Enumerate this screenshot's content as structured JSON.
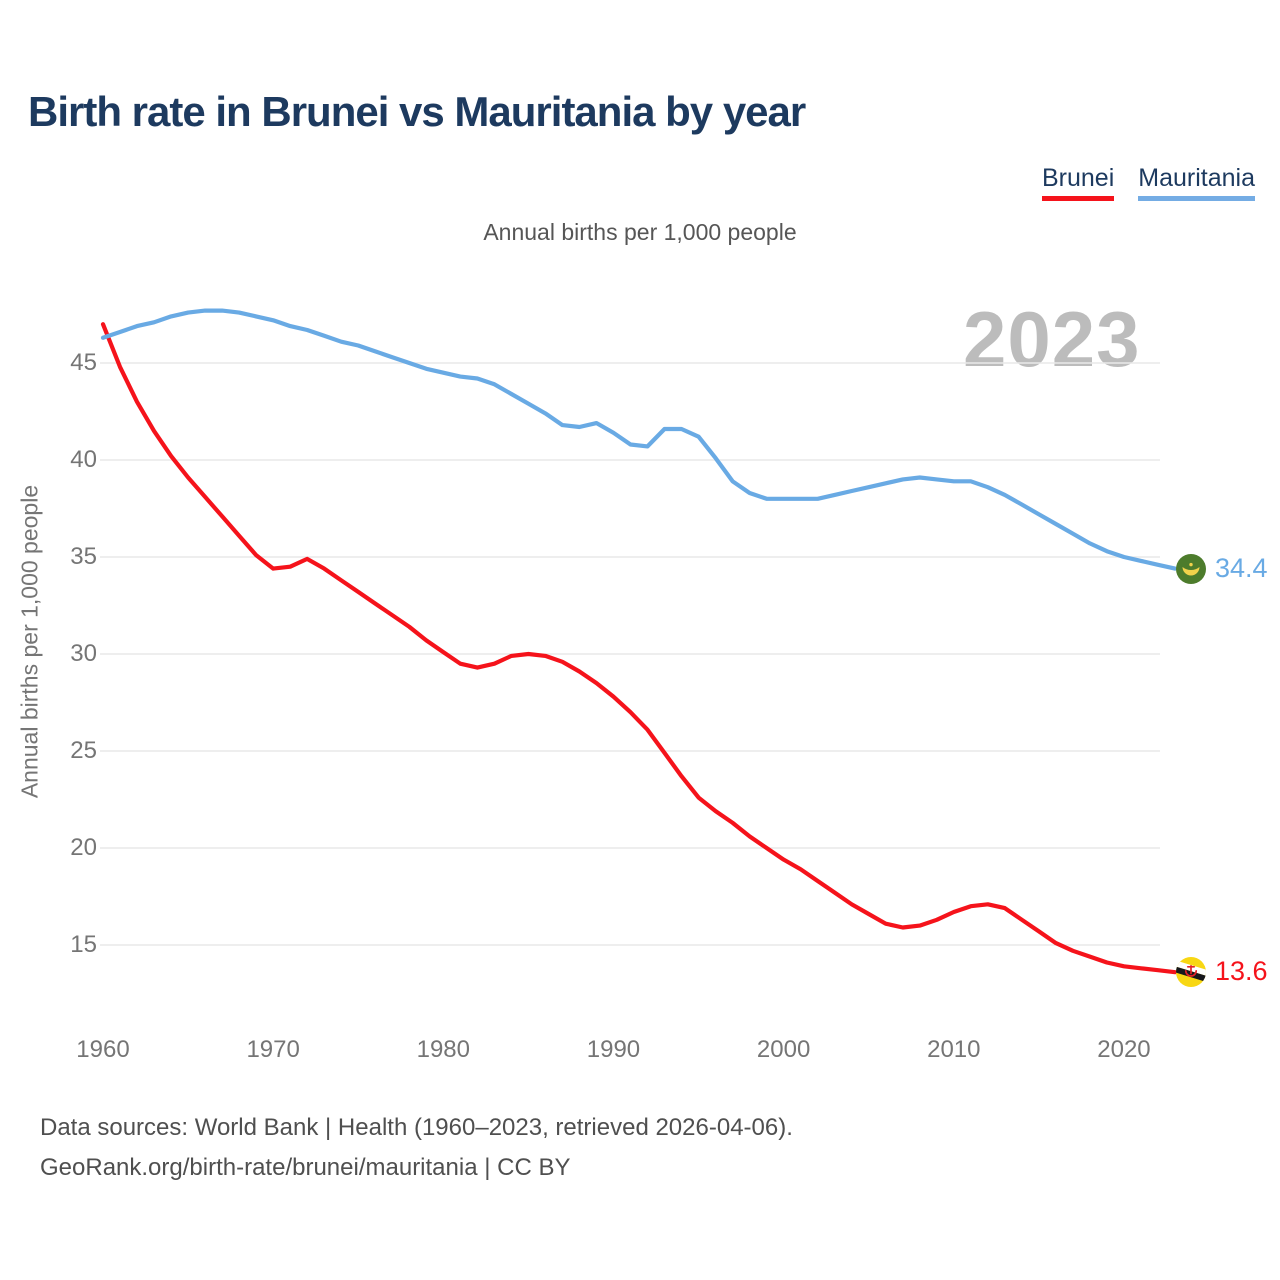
{
  "header": {
    "title": "Birth rate in Brunei vs Mauritania by year"
  },
  "legend": {
    "items": [
      {
        "label": "Brunei",
        "color": "#f5131b"
      },
      {
        "label": "Mauritania",
        "color": "#74ace4"
      }
    ]
  },
  "subtitle": "Annual births per 1,000 people",
  "watermark": "2023",
  "y_axis": {
    "title": "Annual births per 1,000 people"
  },
  "end_labels": [
    {
      "series": "Mauritania",
      "value": "34.4",
      "color": "#69aae4",
      "flag": "mauritania-flag-icon"
    },
    {
      "series": "Brunei",
      "value": "13.6",
      "color": "#f5131b",
      "flag": "brunei-flag-icon"
    }
  ],
  "footer": {
    "line1": "Data sources: World Bank | Health (1960–2023, retrieved 2026-04-06).",
    "line2": "GeoRank.org/birth-rate/brunei/mauritania | CC BY"
  },
  "chart_data": {
    "type": "line",
    "title": "Birth rate in Brunei vs Mauritania by year",
    "subtitle": "Annual births per 1,000 people",
    "ylabel": "Annual births per 1,000 people",
    "xlabel": "",
    "grid": "horizontal",
    "legend_position": "top-right",
    "ylim": [
      13,
      48.5
    ],
    "xlim": [
      1960,
      2023
    ],
    "yticks": [
      15,
      20,
      25,
      30,
      35,
      40,
      45
    ],
    "xticks": [
      1960,
      1970,
      1980,
      1990,
      2000,
      2010,
      2020
    ],
    "x": [
      1960,
      1961,
      1962,
      1963,
      1964,
      1965,
      1966,
      1967,
      1968,
      1969,
      1970,
      1971,
      1972,
      1973,
      1974,
      1975,
      1976,
      1977,
      1978,
      1979,
      1980,
      1981,
      1982,
      1983,
      1984,
      1985,
      1986,
      1987,
      1988,
      1989,
      1990,
      1991,
      1992,
      1993,
      1994,
      1995,
      1996,
      1997,
      1998,
      1999,
      2000,
      2001,
      2002,
      2003,
      2004,
      2005,
      2006,
      2007,
      2008,
      2009,
      2010,
      2011,
      2012,
      2013,
      2014,
      2015,
      2016,
      2017,
      2018,
      2019,
      2020,
      2021,
      2022,
      2023
    ],
    "series": [
      {
        "name": "Brunei",
        "color": "#f5131b",
        "final_value": 13.6,
        "values": [
          47.0,
          44.8,
          43.0,
          41.5,
          40.2,
          39.1,
          38.1,
          37.1,
          36.1,
          35.1,
          34.4,
          34.5,
          34.9,
          34.4,
          33.8,
          33.2,
          32.6,
          32.0,
          31.4,
          30.7,
          30.1,
          29.5,
          29.3,
          29.5,
          29.9,
          30.0,
          29.9,
          29.6,
          29.1,
          28.5,
          27.8,
          27.0,
          26.1,
          24.9,
          23.7,
          22.6,
          21.9,
          21.3,
          20.6,
          20.0,
          19.4,
          18.9,
          18.3,
          17.7,
          17.1,
          16.6,
          16.1,
          15.9,
          16.0,
          16.3,
          16.7,
          17.0,
          17.1,
          16.9,
          16.3,
          15.7,
          15.1,
          14.7,
          14.4,
          14.1,
          13.9,
          13.8,
          13.7,
          13.6
        ]
      },
      {
        "name": "Mauritania",
        "color": "#69aae4",
        "final_value": 34.4,
        "values": [
          46.3,
          46.6,
          46.9,
          47.1,
          47.4,
          47.6,
          47.7,
          47.7,
          47.6,
          47.4,
          47.2,
          46.9,
          46.7,
          46.4,
          46.1,
          45.9,
          45.6,
          45.3,
          45.0,
          44.7,
          44.5,
          44.3,
          44.2,
          43.9,
          43.4,
          42.9,
          42.4,
          41.8,
          41.7,
          41.9,
          41.4,
          40.8,
          40.7,
          41.6,
          41.6,
          41.2,
          40.1,
          38.9,
          38.3,
          38.0,
          38.0,
          38.0,
          38.0,
          38.2,
          38.4,
          38.6,
          38.8,
          39.0,
          39.1,
          39.0,
          38.9,
          38.9,
          38.6,
          38.2,
          37.7,
          37.2,
          36.7,
          36.2,
          35.7,
          35.3,
          35.0,
          34.8,
          34.6,
          34.4
        ]
      }
    ]
  }
}
